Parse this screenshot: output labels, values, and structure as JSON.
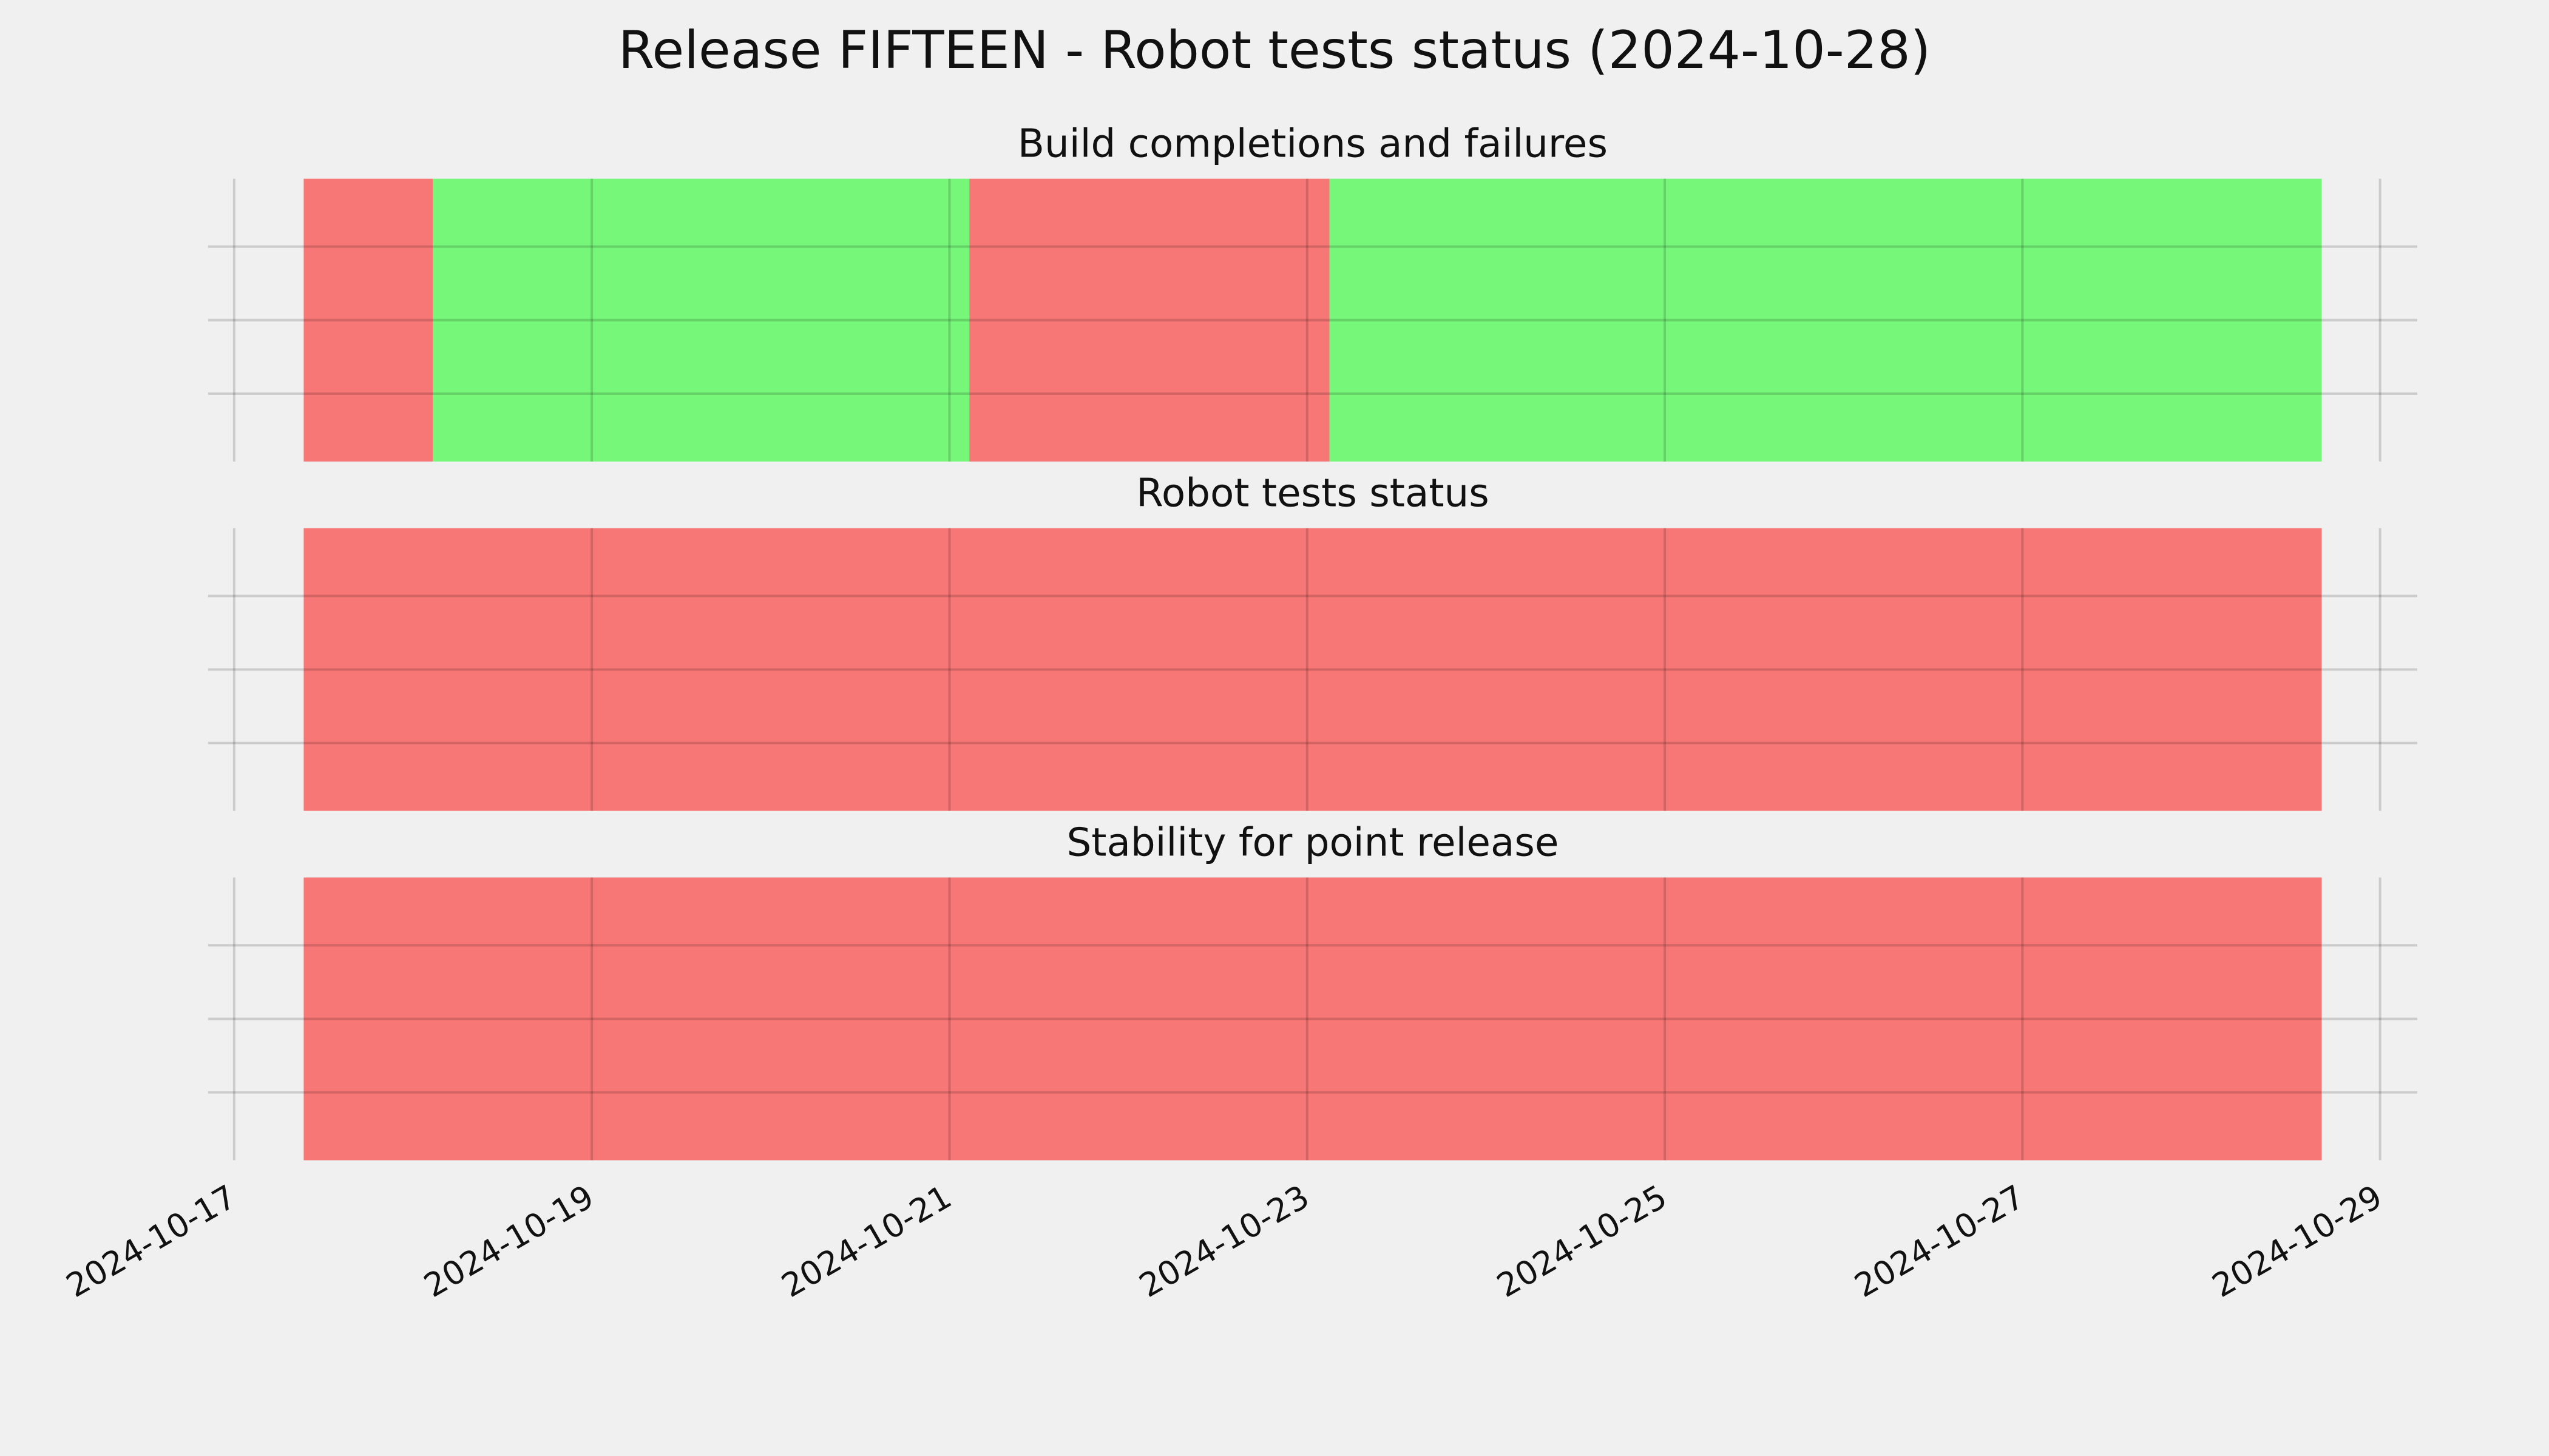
{
  "title": "Release FIFTEEN - Robot tests status (2024-10-28)",
  "chart_data": [
    {
      "type": "timeline",
      "title": "Build completions and failures",
      "spans": [
        {
          "start": "2024-10-17T09:20",
          "end": "2024-10-18T02:40",
          "color": "#f77676"
        },
        {
          "start": "2024-10-18T02:40",
          "end": "2024-10-21T02:40",
          "color": "#77f77a"
        },
        {
          "start": "2024-10-21T02:40",
          "end": "2024-10-23T03:00",
          "color": "#f77676"
        },
        {
          "start": "2024-10-23T03:00",
          "end": "2024-10-28T16:10",
          "color": "#77f77a"
        }
      ],
      "xlim": [
        "2024-10-16T20:30",
        "2024-10-29T05:00"
      ],
      "xticks": [
        "2024-10-17",
        "2024-10-19",
        "2024-10-21",
        "2024-10-23",
        "2024-10-25",
        "2024-10-27",
        "2024-10-29"
      ],
      "ylim": [
        0,
        1
      ],
      "yticks": [
        0.24,
        0.5,
        0.76
      ],
      "grid": true
    },
    {
      "type": "timeline",
      "title": "Robot tests status",
      "spans": [
        {
          "start": "2024-10-17T09:20",
          "end": "2024-10-28T16:10",
          "color": "#f77676"
        }
      ],
      "xlim": [
        "2024-10-16T20:30",
        "2024-10-29T05:00"
      ],
      "xticks": [
        "2024-10-17",
        "2024-10-19",
        "2024-10-21",
        "2024-10-23",
        "2024-10-25",
        "2024-10-27",
        "2024-10-29"
      ],
      "ylim": [
        0,
        1
      ],
      "yticks": [
        0.24,
        0.5,
        0.76
      ],
      "grid": true
    },
    {
      "type": "timeline",
      "title": "Stability for point release",
      "spans": [
        {
          "start": "2024-10-17T09:20",
          "end": "2024-10-28T16:10",
          "color": "#f77676"
        }
      ],
      "xlim": [
        "2024-10-16T20:30",
        "2024-10-29T05:00"
      ],
      "xticks": [
        "2024-10-17",
        "2024-10-19",
        "2024-10-21",
        "2024-10-23",
        "2024-10-25",
        "2024-10-27",
        "2024-10-29"
      ],
      "ylim": [
        0,
        1
      ],
      "yticks": [
        0.24,
        0.5,
        0.76
      ],
      "grid": true
    }
  ]
}
